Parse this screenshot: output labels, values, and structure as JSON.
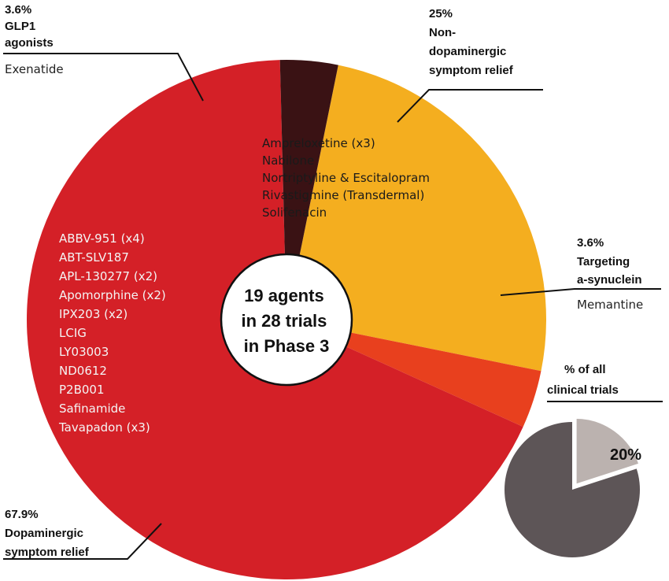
{
  "chart_data": [
    {
      "type": "pie",
      "center_label": [
        "19 agents",
        "in 28 trials",
        "in Phase 3"
      ],
      "slices": [
        {
          "percent_label": "25%",
          "label_lines": [
            "Non-",
            "dopaminergic",
            "symptom relief"
          ],
          "value": 25,
          "color": "#F4AE1F",
          "agents": [
            "Ampreloxetine (x3)",
            "Nabilone",
            "Nortriptyline & Escitalopram",
            "Rivastigmine (Transdermal)",
            "Solifenacin"
          ]
        },
        {
          "percent_label": "3.6%",
          "label_lines": [
            "Targeting",
            "a-synuclein"
          ],
          "value": 3.6,
          "color": "#E8401E",
          "agents": [
            "Memantine"
          ]
        },
        {
          "percent_label": "67.9%",
          "label_lines": [
            "Dopaminergic",
            "symptom relief"
          ],
          "value": 67.9,
          "color": "#D42027",
          "agents": [
            "ABBV-951 (x4)",
            "ABT-SLV187",
            "APL-130277 (x2)",
            "Apomorphine (x2)",
            "IPX203 (x2)",
            "LCIG",
            "LY03003",
            "ND0612",
            "P2B001",
            "Safinamide",
            "Tavapadon (x3)"
          ]
        },
        {
          "percent_label": "3.6%",
          "label_lines": [
            "GLP1",
            "agonists"
          ],
          "value": 3.6,
          "color": "#3A1214",
          "agents": [
            "Exenatide"
          ]
        }
      ]
    },
    {
      "type": "pie",
      "title_lines": [
        "% of all",
        "clinical trials"
      ],
      "slices": [
        {
          "value": 20,
          "label": "20%",
          "color": "#BBB2AF",
          "exploded": true
        },
        {
          "value": 80,
          "color": "#5D5557"
        }
      ]
    }
  ]
}
